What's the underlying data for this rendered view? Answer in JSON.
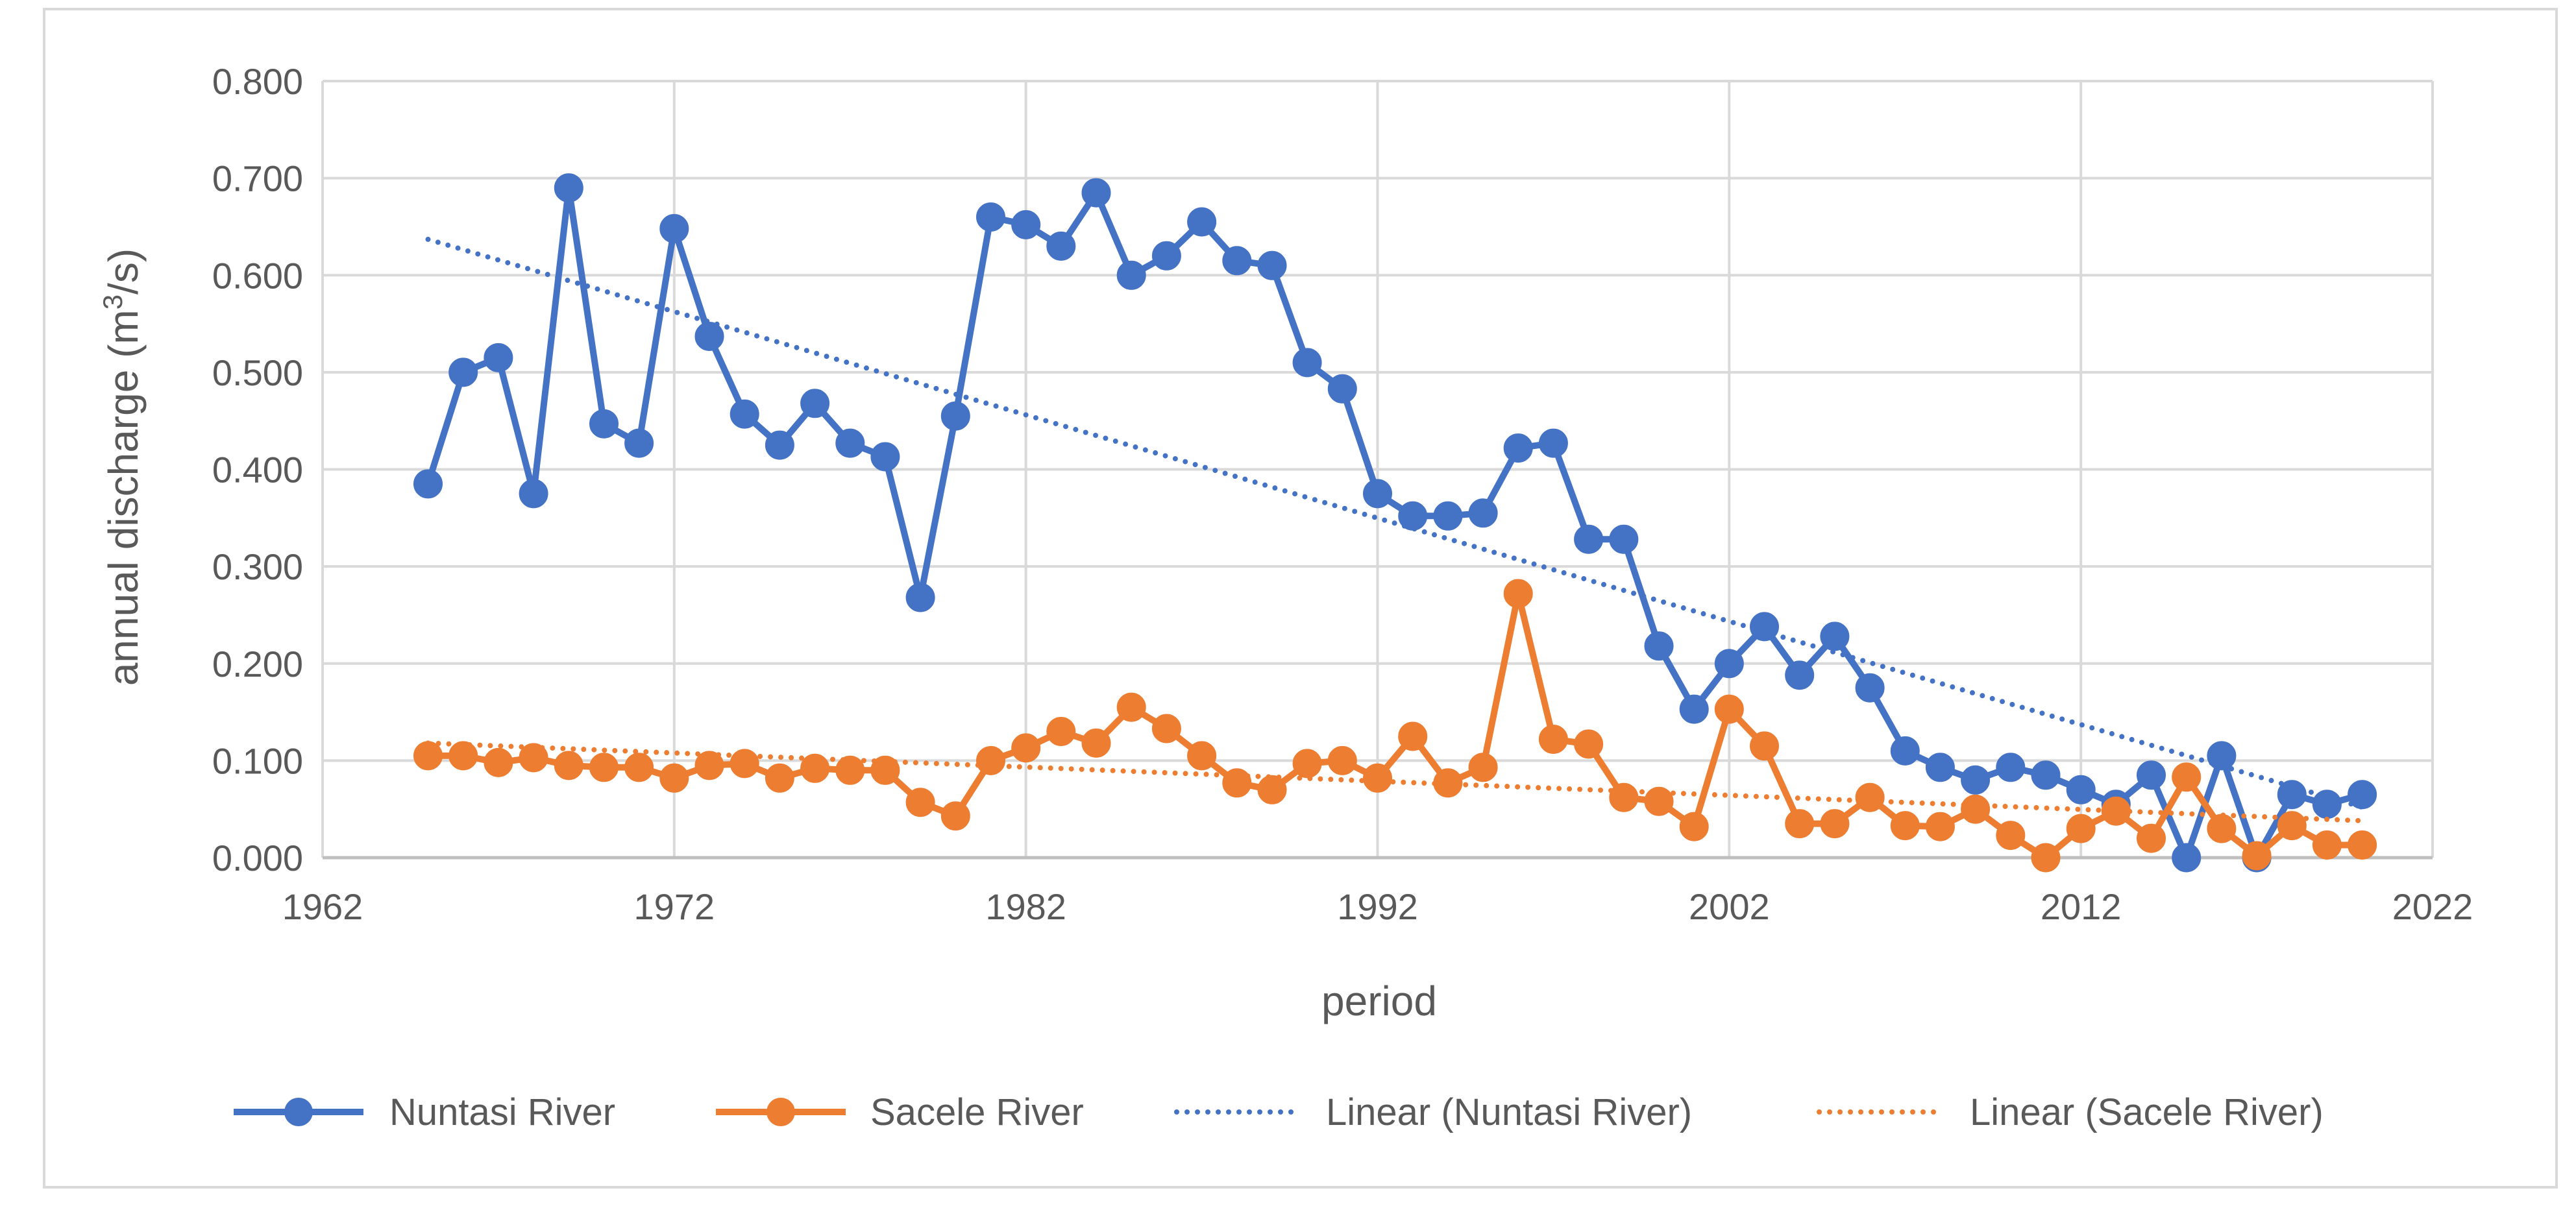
{
  "chart_data": {
    "type": "line",
    "title": "",
    "xlabel": "period",
    "ylabel_prefix": "annual discharge (m",
    "ylabel_sup": "3",
    "ylabel_suffix": "/s)",
    "xlim": [
      1962,
      2022
    ],
    "ylim": [
      0,
      0.8
    ],
    "x_ticks": [
      1962,
      1972,
      1982,
      1992,
      2002,
      2012,
      2022
    ],
    "x_tick_labels": [
      "1962",
      "1972",
      "1982",
      "1992",
      "2002",
      "2012",
      "2022"
    ],
    "y_ticks": [
      0,
      0.1,
      0.2,
      0.3,
      0.4,
      0.5,
      0.6,
      0.7,
      0.8
    ],
    "y_tick_labels": [
      "0.000",
      "0.100",
      "0.200",
      "0.300",
      "0.400",
      "0.500",
      "0.600",
      "0.700",
      "0.800"
    ],
    "grid": true,
    "legend_position": "bottom",
    "x": [
      1965,
      1966,
      1967,
      1968,
      1969,
      1970,
      1971,
      1972,
      1973,
      1974,
      1975,
      1976,
      1977,
      1978,
      1979,
      1980,
      1981,
      1982,
      1983,
      1984,
      1985,
      1986,
      1987,
      1988,
      1989,
      1990,
      1991,
      1992,
      1993,
      1994,
      1995,
      1996,
      1997,
      1998,
      1999,
      2000,
      2001,
      2002,
      2003,
      2004,
      2005,
      2006,
      2007,
      2008,
      2009,
      2010,
      2011,
      2012,
      2013,
      2014,
      2015,
      2016,
      2017,
      2018,
      2019,
      2020
    ],
    "series": [
      {
        "name": "Nuntasi River",
        "color": "#4472c4",
        "style": "line-marker",
        "values": [
          0.385,
          0.5,
          0.515,
          0.375,
          0.69,
          0.447,
          0.427,
          0.648,
          0.537,
          0.457,
          0.425,
          0.468,
          0.427,
          0.413,
          0.268,
          0.455,
          0.66,
          0.652,
          0.63,
          0.685,
          0.6,
          0.62,
          0.655,
          0.615,
          0.61,
          0.51,
          0.483,
          0.375,
          0.352,
          0.352,
          0.355,
          0.422,
          0.427,
          0.328,
          0.328,
          0.218,
          0.153,
          0.2,
          0.238,
          0.188,
          0.228,
          0.175,
          0.11,
          0.093,
          0.08,
          0.093,
          0.085,
          0.07,
          0.055,
          0.085,
          0.0,
          0.105,
          0.0,
          0.065,
          0.055,
          0.065
        ]
      },
      {
        "name": "Sacele River",
        "color": "#ed7d31",
        "style": "line-marker",
        "values": [
          0.105,
          0.105,
          0.098,
          0.103,
          0.095,
          0.093,
          0.093,
          0.082,
          0.095,
          0.097,
          0.082,
          0.092,
          0.09,
          0.09,
          0.057,
          0.043,
          0.1,
          0.113,
          0.13,
          0.118,
          0.155,
          0.133,
          0.105,
          0.077,
          0.07,
          0.097,
          0.1,
          0.082,
          0.125,
          0.077,
          0.093,
          0.272,
          0.122,
          0.117,
          0.062,
          0.058,
          0.032,
          0.153,
          0.115,
          0.035,
          0.035,
          0.062,
          0.033,
          0.032,
          0.05,
          0.023,
          0.0,
          0.03,
          0.048,
          0.02,
          0.083,
          0.03,
          0.002,
          0.033,
          0.013,
          0.013
        ]
      },
      {
        "name": "Linear (Nuntasi River)",
        "color": "#4472c4",
        "style": "dotted",
        "x": [
          1965,
          2020
        ],
        "values": [
          0.637,
          0.052
        ]
      },
      {
        "name": "Linear (Sacele River)",
        "color": "#ed7d31",
        "style": "dotted",
        "x": [
          1965,
          2020
        ],
        "values": [
          0.118,
          0.038
        ]
      }
    ]
  }
}
